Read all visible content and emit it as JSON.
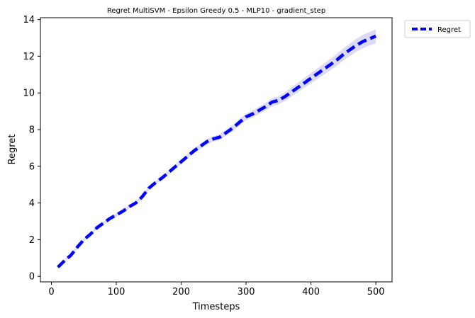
{
  "chart_data": {
    "type": "line",
    "title": "Regret MultiSVM - Epsilon Greedy 0.5 - MLP10 - gradient_step",
    "xlabel": "Timesteps",
    "ylabel": "Regret",
    "xlim": [
      -17,
      525
    ],
    "ylim": [
      -0.3,
      14.1
    ],
    "xticks": [
      0,
      100,
      200,
      300,
      400,
      500
    ],
    "yticks": [
      0,
      2,
      4,
      6,
      8,
      10,
      12,
      14
    ],
    "grid": false,
    "legend_position": "outside-top-right",
    "x": [
      10,
      20,
      30,
      40,
      50,
      60,
      70,
      80,
      90,
      100,
      110,
      120,
      130,
      140,
      150,
      160,
      170,
      180,
      190,
      200,
      210,
      220,
      230,
      240,
      250,
      260,
      270,
      280,
      290,
      300,
      310,
      320,
      330,
      340,
      350,
      360,
      370,
      380,
      390,
      400,
      410,
      420,
      430,
      440,
      450,
      460,
      470,
      480,
      490,
      500
    ],
    "series": [
      {
        "name": "Regret",
        "color": "#0000ff",
        "band_color": "#b8b8f0",
        "style": "dashed",
        "values": [
          0.5,
          0.85,
          1.15,
          1.6,
          2.0,
          2.3,
          2.65,
          2.9,
          3.15,
          3.35,
          3.55,
          3.8,
          4.0,
          4.35,
          4.8,
          5.1,
          5.35,
          5.65,
          5.95,
          6.25,
          6.55,
          6.85,
          7.1,
          7.35,
          7.5,
          7.6,
          7.85,
          8.1,
          8.4,
          8.7,
          8.85,
          9.05,
          9.25,
          9.5,
          9.6,
          9.8,
          10.05,
          10.3,
          10.55,
          10.8,
          11.05,
          11.3,
          11.55,
          11.8,
          12.1,
          12.35,
          12.6,
          12.8,
          12.95,
          13.1
        ],
        "lower": [
          0.45,
          0.8,
          1.08,
          1.52,
          1.92,
          2.22,
          2.57,
          2.82,
          3.06,
          3.25,
          3.45,
          3.7,
          3.9,
          4.25,
          4.7,
          5.0,
          5.25,
          5.53,
          5.83,
          6.12,
          6.42,
          6.72,
          6.96,
          7.2,
          7.35,
          7.45,
          7.68,
          7.93,
          8.22,
          8.52,
          8.66,
          8.85,
          9.05,
          9.28,
          9.38,
          9.56,
          9.8,
          10.04,
          10.28,
          10.52,
          10.76,
          11.0,
          11.24,
          11.48,
          11.77,
          12.01,
          12.25,
          12.44,
          12.58,
          12.72
        ],
        "upper": [
          0.55,
          0.9,
          1.22,
          1.68,
          2.08,
          2.38,
          2.73,
          2.98,
          3.24,
          3.45,
          3.65,
          3.9,
          4.1,
          4.45,
          4.9,
          5.2,
          5.45,
          5.77,
          6.07,
          6.38,
          6.68,
          6.98,
          7.24,
          7.5,
          7.65,
          7.75,
          8.02,
          8.27,
          8.58,
          8.88,
          9.04,
          9.25,
          9.45,
          9.72,
          9.82,
          10.04,
          10.3,
          10.56,
          10.82,
          11.08,
          11.34,
          11.6,
          11.86,
          12.12,
          12.43,
          12.69,
          12.95,
          13.16,
          13.32,
          13.48
        ]
      }
    ]
  }
}
